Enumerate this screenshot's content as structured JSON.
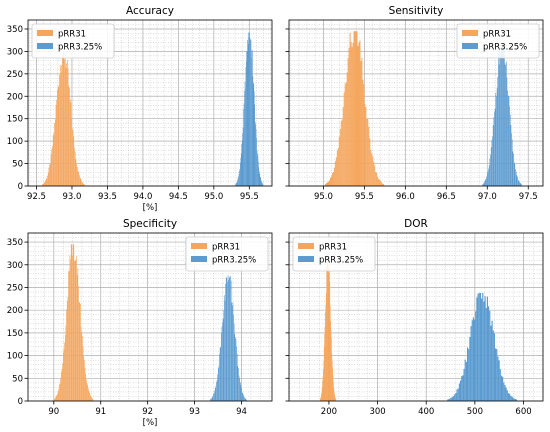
{
  "figure": {
    "colors": {
      "series_a": "#f5a55c",
      "series_b": "#5b9bd0",
      "grid": "#b0b0b0"
    }
  },
  "chart_data": [
    {
      "type": "histogram",
      "title": "Accuracy",
      "xlabel": "[%]",
      "ylabel": "",
      "xlim": [
        92.38,
        95.82
      ],
      "ylim": [
        0,
        370
      ],
      "xticks": [
        92.5,
        93.0,
        93.5,
        94.0,
        94.5,
        95.0,
        95.5
      ],
      "xtick_labels": [
        "92.5",
        "93.0",
        "93.5",
        "94.0",
        "94.5",
        "95.0",
        "95.5"
      ],
      "yticks": [
        0,
        50,
        100,
        150,
        200,
        250,
        300,
        350
      ],
      "ytick_labels": [
        "0",
        "50",
        "100",
        "150",
        "200",
        "250",
        "300",
        "350"
      ],
      "legend_position": "top-left",
      "grid": true,
      "series": [
        {
          "name": "pRR31",
          "color": "#f5a55c",
          "center": 92.88,
          "sd": 0.1,
          "peak": 298,
          "bins": 60
        },
        {
          "name": "pRR3.25%",
          "color": "#5b9bd0",
          "center": 95.5,
          "sd": 0.065,
          "peak": 342,
          "bins": 60
        }
      ]
    },
    {
      "type": "histogram",
      "title": "Sensitivity",
      "xlabel": "",
      "ylabel": "",
      "xlim": [
        94.58,
        97.68
      ],
      "ylim": [
        0,
        370
      ],
      "xticks": [
        95.0,
        95.5,
        96.0,
        96.5,
        97.0,
        97.5
      ],
      "xtick_labels": [
        "95.0",
        "95.5",
        "96.0",
        "96.5",
        "97.0",
        "97.5"
      ],
      "yticks": [
        0,
        50,
        100,
        150,
        200,
        250,
        300,
        350
      ],
      "ytick_labels": [],
      "legend_position": "top-right",
      "grid": true,
      "series": [
        {
          "name": "pRR31",
          "color": "#f5a55c",
          "center": 95.38,
          "sd": 0.12,
          "peak": 345,
          "bins": 60
        },
        {
          "name": "pRR3.25%",
          "color": "#5b9bd0",
          "center": 97.18,
          "sd": 0.08,
          "peak": 318,
          "bins": 60
        }
      ]
    },
    {
      "type": "histogram",
      "title": "Specificity",
      "xlabel": "[%]",
      "ylabel": "",
      "xlim": [
        89.45,
        94.65
      ],
      "ylim": [
        0,
        370
      ],
      "xticks": [
        90,
        91,
        92,
        93,
        94
      ],
      "xtick_labels": [
        "90",
        "91",
        "92",
        "93",
        "94"
      ],
      "yticks": [
        0,
        50,
        100,
        150,
        200,
        250,
        300,
        350
      ],
      "ytick_labels": [
        "0",
        "50",
        "100",
        "150",
        "200",
        "250",
        "300",
        "350"
      ],
      "legend_position": "top-right",
      "grid": true,
      "series": [
        {
          "name": "pRR31",
          "color": "#f5a55c",
          "center": 90.42,
          "sd": 0.14,
          "peak": 345,
          "bins": 60
        },
        {
          "name": "pRR3.25%",
          "color": "#5b9bd0",
          "center": 93.72,
          "sd": 0.13,
          "peak": 277,
          "bins": 60
        }
      ]
    },
    {
      "type": "histogram",
      "title": "DOR",
      "xlabel": "",
      "ylabel": "",
      "xlim": [
        118,
        640
      ],
      "ylim": [
        0,
        370
      ],
      "xticks": [
        200,
        300,
        400,
        500,
        600
      ],
      "xtick_labels": [
        "200",
        "300",
        "400",
        "500",
        "600"
      ],
      "yticks": [
        0,
        50,
        100,
        150,
        200,
        250,
        300,
        350
      ],
      "ytick_labels": [],
      "legend_position": "top-left",
      "grid": true,
      "series": [
        {
          "name": "pRR31",
          "color": "#f5a55c",
          "center": 198,
          "sd": 5.5,
          "peak": 312,
          "bins": 40
        },
        {
          "name": "pRR3.25%",
          "color": "#5b9bd0",
          "center": 515,
          "sd": 24,
          "peak": 238,
          "bins": 60
        }
      ]
    }
  ]
}
